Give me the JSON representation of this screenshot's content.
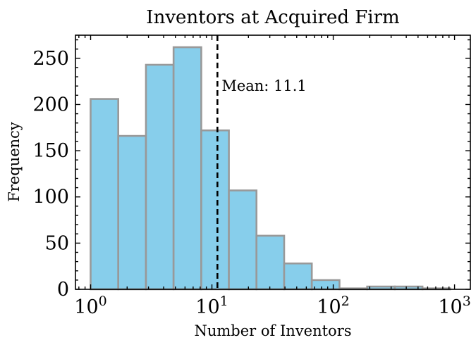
{
  "chart_data": {
    "type": "bar",
    "title": "Inventors at Acquired Firm",
    "xlabel": "Number of Inventors",
    "ylabel": "Frequency",
    "xscale": "log",
    "xlim": [
      0.75,
      1350
    ],
    "ylim": [
      0,
      275
    ],
    "bin_edges": [
      1.0,
      1.69,
      2.86,
      4.83,
      8.17,
      13.8,
      23.3,
      39.4,
      66.6,
      112.6,
      190.4,
      321.9,
      544.2,
      920.0
    ],
    "values": [
      206,
      166,
      243,
      262,
      172,
      107,
      58,
      28,
      10,
      1,
      3,
      3,
      1
    ],
    "bar_color": "#87ceeb",
    "bar_edge_color": "#999999",
    "mean_line": {
      "x": 11.1,
      "label": "Mean: 11.1",
      "style": "dashed",
      "color": "#000000"
    },
    "x_ticks": [
      {
        "value": 1,
        "base": "10",
        "exp": "0"
      },
      {
        "value": 10,
        "base": "10",
        "exp": "1"
      },
      {
        "value": 100,
        "base": "10",
        "exp": "2"
      },
      {
        "value": 1000,
        "base": "10",
        "exp": "3"
      }
    ],
    "y_ticks": [
      {
        "value": 0,
        "label": "0"
      },
      {
        "value": 50,
        "label": "50"
      },
      {
        "value": 100,
        "label": "100"
      },
      {
        "value": 150,
        "label": "150"
      },
      {
        "value": 200,
        "label": "200"
      },
      {
        "value": 250,
        "label": "250"
      }
    ],
    "y_minor_step": 10,
    "grid": false,
    "legend": "none"
  }
}
